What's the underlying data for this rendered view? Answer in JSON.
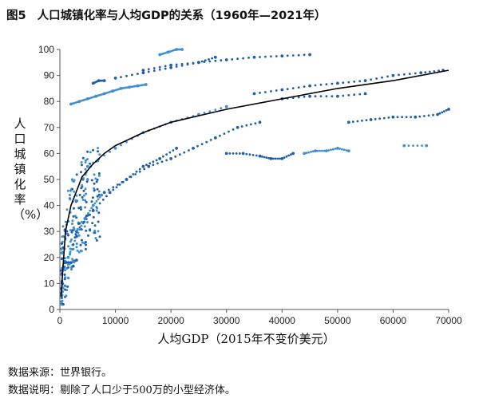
{
  "figure": {
    "number": "图5",
    "title": "人口城镇化率与人均GDP的关系（1960年—2021年）"
  },
  "chart_data": {
    "type": "scatter",
    "title": "人口城镇化率与人均GDP的关系（1960年—2021年）",
    "xlabel": "人均GDP（2015年不变价美元）",
    "ylabel": "人口城镇化率（%）",
    "xlim": [
      0,
      70000
    ],
    "ylim": [
      0,
      100
    ],
    "x_ticks": [
      "0",
      "10000",
      "20000",
      "30000",
      "40000",
      "50000",
      "60000",
      "70000"
    ],
    "y_ticks": [
      "0",
      "10",
      "20",
      "30",
      "40",
      "50",
      "60",
      "70",
      "80",
      "90",
      "100"
    ],
    "grid": false,
    "legend": "none",
    "colors": {
      "points_light": "#3f8fd0",
      "points_dark": "#1f5fa8",
      "trend": "#000000"
    },
    "trend_line": {
      "name": "",
      "x": [
        200,
        1000,
        2000,
        4000,
        6000,
        8000,
        10000,
        15000,
        20000,
        30000,
        40000,
        50000,
        60000,
        70000
      ],
      "y": [
        5,
        30,
        40,
        51,
        56,
        60,
        63,
        68,
        72,
        77,
        81,
        85,
        88,
        92
      ]
    },
    "series": [
      {
        "name": "",
        "x": [
          2000,
          3500,
          5000,
          6500,
          8000,
          9500,
          11000,
          12500,
          14000,
          15500
        ],
        "y": [
          79,
          80,
          81,
          82,
          83,
          84,
          85,
          85.5,
          86,
          86.5
        ]
      },
      {
        "name": "",
        "x": [
          15000,
          20000,
          25000,
          30000,
          35000,
          40000,
          45000
        ],
        "y": [
          92,
          94,
          95,
          96,
          97,
          97.5,
          98
        ]
      },
      {
        "name": "",
        "x": [
          10000,
          15000,
          20000,
          25000,
          28000
        ],
        "y": [
          89,
          91,
          93,
          95,
          97
        ]
      },
      {
        "name": "",
        "x": [
          18000,
          19500,
          21000,
          22000
        ],
        "y": [
          98,
          99,
          100,
          100
        ]
      },
      {
        "name": "",
        "x": [
          35000,
          40000,
          45000,
          50000,
          55000,
          60000,
          65000,
          69000
        ],
        "y": [
          83,
          84.5,
          86,
          87,
          88,
          90,
          91,
          92
        ]
      },
      {
        "name": "",
        "x": [
          30000,
          33000,
          36000,
          38000,
          40000,
          42000
        ],
        "y": [
          60,
          60,
          59,
          58,
          58,
          60
        ]
      },
      {
        "name": "",
        "x": [
          44000,
          46000,
          48000,
          50000,
          52000
        ],
        "y": [
          60,
          61,
          61,
          62,
          61
        ]
      },
      {
        "name": "",
        "x": [
          52000,
          56000,
          60000,
          64000,
          68000,
          70000
        ],
        "y": [
          72,
          73,
          74,
          74,
          75,
          77
        ]
      },
      {
        "name": "",
        "x": [
          40000,
          45000,
          50000,
          55000
        ],
        "y": [
          81,
          82,
          82,
          83
        ]
      },
      {
        "name": "",
        "x": [
          5000,
          10000,
          15000,
          20000,
          25000,
          30000
        ],
        "y": [
          55,
          62,
          68,
          72,
          75,
          78
        ]
      },
      {
        "name": "",
        "x": [
          8000,
          12000,
          16000,
          20000,
          24000,
          28000,
          32000,
          36000
        ],
        "y": [
          45,
          50,
          55,
          58,
          62,
          66,
          70,
          72
        ]
      },
      {
        "name": "",
        "x": [
          3000,
          6000,
          9000,
          12000,
          15000,
          18000,
          21000
        ],
        "y": [
          30,
          38,
          45,
          50,
          55,
          58,
          62
        ]
      },
      {
        "name": "",
        "x": [
          1500,
          3000,
          4500,
          6000,
          7500
        ],
        "y": [
          20,
          28,
          35,
          40,
          44
        ]
      },
      {
        "name": "",
        "x": [
          800,
          1500,
          2000,
          2500,
          3000
        ],
        "y": [
          18,
          18,
          18,
          18.5,
          19
        ]
      },
      {
        "name": "",
        "x": [
          6000,
          7000,
          8000
        ],
        "y": [
          87,
          88,
          88
        ]
      },
      {
        "name": "",
        "x": [
          62000,
          66000
        ],
        "y": [
          63,
          63
        ]
      }
    ]
  },
  "footer": {
    "source": "数据来源：世界银行。",
    "note": "数据说明：剔除了人口少于500万的小型经济体。"
  }
}
